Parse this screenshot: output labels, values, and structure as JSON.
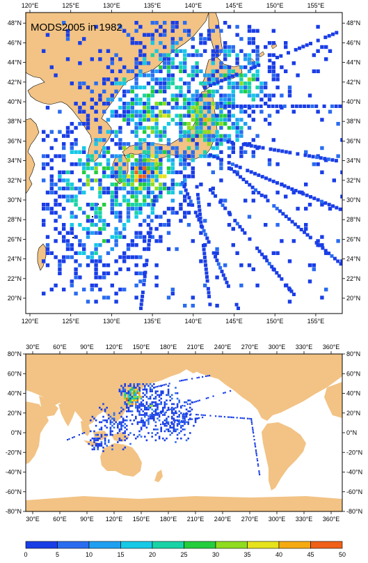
{
  "title": "MODS2005 in 1982",
  "land_color": "#f2c385",
  "ocean_color": "#ffffff",
  "regional_map": {
    "lon_range": [
      118,
      158
    ],
    "lat_range": [
      18.5,
      49.5
    ],
    "lon_ticks": [
      "120°E",
      "125°E",
      "130°E",
      "135°E",
      "140°E",
      "145°E",
      "150°E",
      "155°E"
    ],
    "lat_ticks": [
      "20°N",
      "22°N",
      "24°N",
      "26°N",
      "28°N",
      "30°N",
      "32°N",
      "34°N",
      "36°N",
      "38°N",
      "40°N",
      "42°N",
      "44°N",
      "46°N",
      "48°N"
    ]
  },
  "global_map": {
    "lon_range": [
      20,
      370
    ],
    "lat_range": [
      -80,
      80
    ],
    "lon_ticks": [
      "30°E",
      "60°E",
      "90°E",
      "120°E",
      "150°E",
      "180°E",
      "210°E",
      "240°E",
      "270°E",
      "300°E",
      "330°E",
      "360°E"
    ],
    "lat_ticks": [
      "80°N",
      "60°N",
      "40°N",
      "20°N",
      "0°N",
      "-20°N",
      "-40°N",
      "-60°N",
      "-80°N"
    ]
  },
  "colorbar": {
    "ticks": [
      "0",
      "5",
      "10",
      "15",
      "20",
      "25",
      "30",
      "35",
      "40",
      "45",
      "50"
    ],
    "colors": [
      "#1a3ee6",
      "#2a6cf0",
      "#1f9ff2",
      "#16c9e6",
      "#19d3a6",
      "#24cd3c",
      "#8fdc20",
      "#e6e21c",
      "#f5aa12",
      "#f06018"
    ]
  }
}
